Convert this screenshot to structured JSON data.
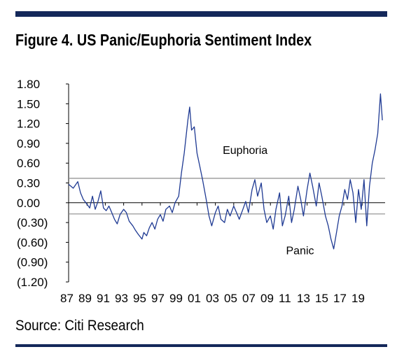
{
  "header": {
    "title": "Figure 4. US Panic/Euphoria Sentiment Index"
  },
  "footer": {
    "source": "Source: Citi Research"
  },
  "chart_data": {
    "type": "line",
    "title": "Figure 4. US Panic/Euphoria Sentiment Index",
    "xlabel": "",
    "ylabel": "",
    "ylim": [
      -1.2,
      1.8
    ],
    "yticks": [
      1.8,
      1.5,
      1.2,
      0.9,
      0.6,
      0.3,
      0.0,
      -0.3,
      -0.6,
      -0.9,
      -1.2
    ],
    "ytick_labels": [
      "1.80",
      "1.50",
      "1.20",
      "0.90",
      "0.60",
      "0.30",
      "0.00",
      "(0.30)",
      "(0.60)",
      "(0.90)",
      "(1.20)"
    ],
    "xlim": [
      1987,
      2021.5
    ],
    "xtick_labels": [
      "87",
      "89",
      "91",
      "93",
      "95",
      "97",
      "99",
      "01",
      "03",
      "05",
      "07",
      "09",
      "11",
      "13",
      "15",
      "17",
      "19"
    ],
    "threshold_lines": [
      {
        "label": "Euphoria",
        "value": 0.37
      },
      {
        "label": "Panic",
        "value": -0.17
      }
    ],
    "grid": false,
    "series": [
      {
        "color": "#1f3a93",
        "points": [
          [
            1987.0,
            0.28
          ],
          [
            1987.5,
            0.22
          ],
          [
            1988.0,
            0.32
          ],
          [
            1988.3,
            0.15
          ],
          [
            1988.6,
            0.05
          ],
          [
            1989.0,
            -0.02
          ],
          [
            1989.3,
            -0.08
          ],
          [
            1989.6,
            0.1
          ],
          [
            1989.9,
            -0.1
          ],
          [
            1990.2,
            0.02
          ],
          [
            1990.5,
            0.18
          ],
          [
            1990.8,
            -0.08
          ],
          [
            1991.1,
            -0.12
          ],
          [
            1991.4,
            -0.05
          ],
          [
            1991.7,
            -0.15
          ],
          [
            1992.0,
            -0.25
          ],
          [
            1992.3,
            -0.32
          ],
          [
            1992.6,
            -0.18
          ],
          [
            1993.0,
            -0.1
          ],
          [
            1993.3,
            -0.15
          ],
          [
            1993.6,
            -0.28
          ],
          [
            1994.0,
            -0.35
          ],
          [
            1994.3,
            -0.42
          ],
          [
            1994.6,
            -0.48
          ],
          [
            1995.0,
            -0.55
          ],
          [
            1995.2,
            -0.45
          ],
          [
            1995.5,
            -0.5
          ],
          [
            1995.8,
            -0.38
          ],
          [
            1996.1,
            -0.3
          ],
          [
            1996.4,
            -0.4
          ],
          [
            1996.7,
            -0.25
          ],
          [
            1997.0,
            -0.18
          ],
          [
            1997.3,
            -0.28
          ],
          [
            1997.6,
            -0.1
          ],
          [
            1998.0,
            -0.05
          ],
          [
            1998.3,
            -0.15
          ],
          [
            1998.6,
            0.0
          ],
          [
            1999.0,
            0.1
          ],
          [
            1999.3,
            0.45
          ],
          [
            1999.6,
            0.75
          ],
          [
            2000.0,
            1.25
          ],
          [
            2000.2,
            1.45
          ],
          [
            2000.4,
            1.1
          ],
          [
            2000.7,
            1.15
          ],
          [
            2001.0,
            0.75
          ],
          [
            2001.3,
            0.55
          ],
          [
            2001.6,
            0.35
          ],
          [
            2002.0,
            0.05
          ],
          [
            2002.3,
            -0.2
          ],
          [
            2002.6,
            -0.35
          ],
          [
            2003.0,
            -0.15
          ],
          [
            2003.3,
            -0.05
          ],
          [
            2003.6,
            -0.25
          ],
          [
            2004.0,
            -0.3
          ],
          [
            2004.3,
            -0.1
          ],
          [
            2004.6,
            -0.2
          ],
          [
            2005.0,
            -0.05
          ],
          [
            2005.3,
            -0.15
          ],
          [
            2005.6,
            -0.25
          ],
          [
            2006.0,
            -0.1
          ],
          [
            2006.3,
            0.02
          ],
          [
            2006.6,
            -0.15
          ],
          [
            2007.0,
            0.2
          ],
          [
            2007.3,
            0.35
          ],
          [
            2007.6,
            0.1
          ],
          [
            2008.0,
            0.3
          ],
          [
            2008.3,
            -0.1
          ],
          [
            2008.6,
            -0.3
          ],
          [
            2009.0,
            -0.2
          ],
          [
            2009.3,
            -0.4
          ],
          [
            2009.6,
            -0.1
          ],
          [
            2010.0,
            0.15
          ],
          [
            2010.3,
            -0.35
          ],
          [
            2010.6,
            -0.2
          ],
          [
            2011.0,
            0.1
          ],
          [
            2011.3,
            -0.3
          ],
          [
            2011.6,
            -0.1
          ],
          [
            2012.0,
            0.25
          ],
          [
            2012.3,
            0.05
          ],
          [
            2012.6,
            -0.2
          ],
          [
            2013.0,
            0.2
          ],
          [
            2013.3,
            0.45
          ],
          [
            2013.6,
            0.25
          ],
          [
            2014.0,
            -0.05
          ],
          [
            2014.3,
            0.3
          ],
          [
            2014.6,
            0.1
          ],
          [
            2015.0,
            -0.2
          ],
          [
            2015.3,
            -0.35
          ],
          [
            2015.6,
            -0.55
          ],
          [
            2015.9,
            -0.7
          ],
          [
            2016.2,
            -0.45
          ],
          [
            2016.5,
            -0.2
          ],
          [
            2016.8,
            -0.05
          ],
          [
            2017.1,
            0.2
          ],
          [
            2017.4,
            0.05
          ],
          [
            2017.7,
            0.35
          ],
          [
            2018.0,
            0.15
          ],
          [
            2018.3,
            -0.3
          ],
          [
            2018.6,
            0.2
          ],
          [
            2018.9,
            -0.1
          ],
          [
            2019.2,
            0.35
          ],
          [
            2019.5,
            -0.35
          ],
          [
            2019.8,
            0.25
          ],
          [
            2020.1,
            0.6
          ],
          [
            2020.4,
            0.8
          ],
          [
            2020.7,
            1.05
          ],
          [
            2021.0,
            1.65
          ],
          [
            2021.2,
            1.25
          ]
        ]
      }
    ],
    "annotations": [
      {
        "text": "Euphoria",
        "x": 2003.8,
        "y": 0.74
      },
      {
        "text": "Panic",
        "x": 2010.7,
        "y": -0.78
      }
    ]
  }
}
